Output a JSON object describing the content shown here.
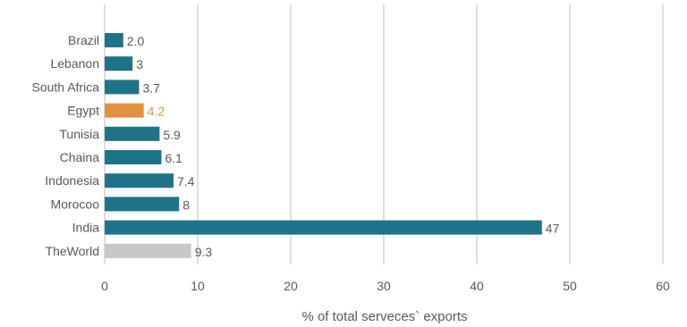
{
  "chart_data": {
    "type": "bar",
    "orientation": "horizontal",
    "title": "",
    "xlabel": "% of total serveces` exports",
    "ylabel": "",
    "xlim": [
      0,
      60
    ],
    "xticks": [
      0,
      10,
      20,
      30,
      40,
      50,
      60
    ],
    "grid": "vertical",
    "legend": "none",
    "categories": [
      "Brazil",
      "Lebanon",
      "South Africa",
      "Egypt",
      "Tunisia",
      "Chaina",
      "Indonesia",
      "Morocoo",
      "India",
      "TheWorld"
    ],
    "values": [
      2.0,
      3,
      3.7,
      4.2,
      5.9,
      6.1,
      7.4,
      8,
      47,
      9.3
    ],
    "value_labels": [
      "2.0",
      "3",
      "3.7",
      "4.2",
      "5.9",
      "6.1",
      "7.4",
      "8",
      "47",
      "9.3"
    ],
    "colors": [
      "#1f7388",
      "#1f7388",
      "#1f7388",
      "#e09244",
      "#1f7388",
      "#1f7388",
      "#1f7388",
      "#1f7388",
      "#1f7388",
      "#c8c8c8"
    ],
    "label_colors": [
      "#595959",
      "#595959",
      "#595959",
      "#e09244",
      "#595959",
      "#595959",
      "#595959",
      "#595959",
      "#595959",
      "#595959"
    ]
  }
}
